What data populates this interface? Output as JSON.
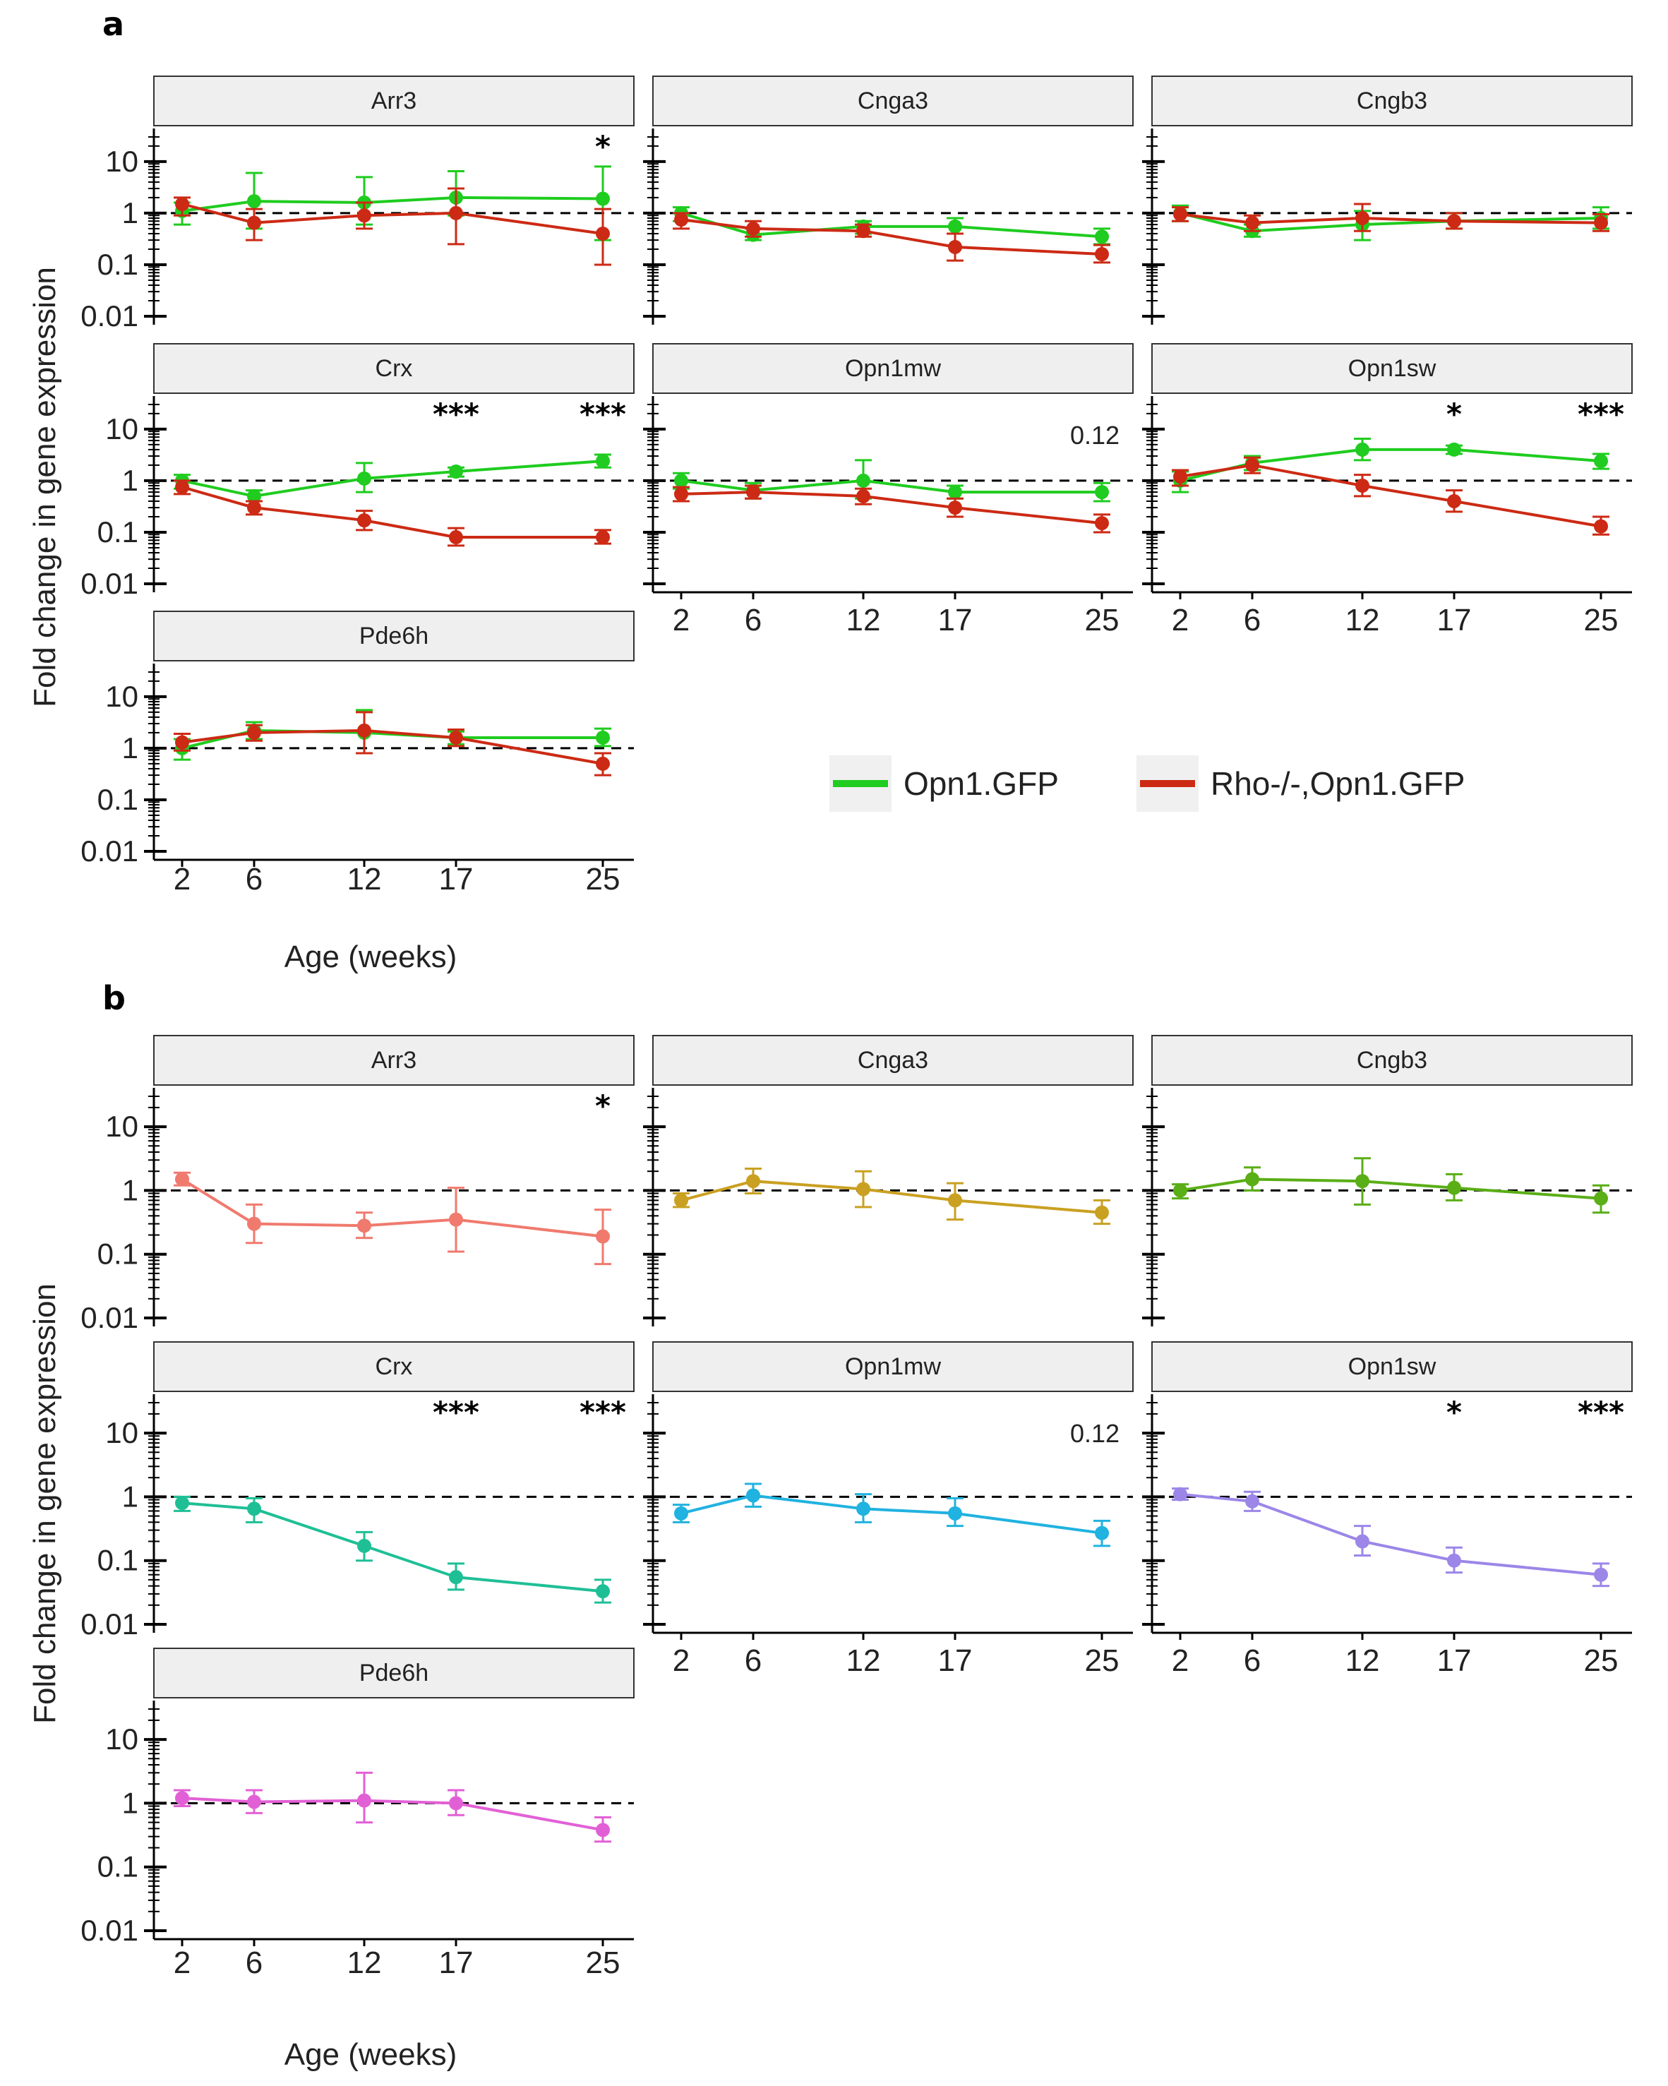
{
  "y_axis_label": "Fold change in gene expression",
  "x_axis_label": "Age (weeks)",
  "colors": {
    "strip_fill": "#efefef",
    "opn1gfp": "#1fcc1f",
    "rho": "#cc2a14"
  },
  "legend": [
    {
      "label": "Opn1.GFP",
      "color": "#1fcc1f"
    },
    {
      "label": "Rho-/-,Opn1.GFP",
      "color": "#cc2a14"
    }
  ],
  "chart_data": [
    {
      "panel": "a",
      "type": "line",
      "x_ticks": [
        2,
        6,
        12,
        17,
        25
      ],
      "y_ticks": [
        "10",
        "1",
        "0.1",
        "0.01"
      ],
      "y_scale": "log10",
      "ylim": [
        0.01,
        30
      ],
      "reference_line": 1,
      "facets": [
        {
          "gene": "Arr3",
          "annotations": [
            {
              "x": 25,
              "text": "*"
            }
          ],
          "series": [
            {
              "name": "Opn1.GFP",
              "color": "#1fcc1f",
              "x": [
                2,
                6,
                12,
                17,
                25
              ],
              "y": [
                1.1,
                1.7,
                1.6,
                2.0,
                1.9
              ],
              "lo": [
                0.6,
                0.5,
                0.6,
                0.9,
                0.3
              ],
              "hi": [
                1.6,
                6.0,
                5.0,
                6.5,
                8.0
              ]
            },
            {
              "name": "Rho-/-,Opn1.GFP",
              "color": "#cc2a14",
              "x": [
                2,
                6,
                12,
                17,
                25
              ],
              "y": [
                1.5,
                0.65,
                0.9,
                1.0,
                0.4
              ],
              "lo": [
                0.9,
                0.3,
                0.5,
                0.25,
                0.1
              ],
              "hi": [
                2.0,
                1.2,
                1.6,
                3.0,
                1.2
              ]
            }
          ]
        },
        {
          "gene": "Cnga3",
          "annotations": [],
          "series": [
            {
              "name": "Opn1.GFP",
              "color": "#1fcc1f",
              "x": [
                2,
                6,
                12,
                17,
                25
              ],
              "y": [
                1.0,
                0.38,
                0.55,
                0.55,
                0.35
              ],
              "lo": [
                0.7,
                0.3,
                0.4,
                0.4,
                0.25
              ],
              "hi": [
                1.3,
                0.5,
                0.7,
                0.8,
                0.5
              ]
            },
            {
              "name": "Rho-/-,Opn1.GFP",
              "color": "#cc2a14",
              "x": [
                2,
                6,
                12,
                17,
                25
              ],
              "y": [
                0.75,
                0.5,
                0.45,
                0.22,
                0.16
              ],
              "lo": [
                0.5,
                0.35,
                0.35,
                0.12,
                0.11
              ],
              "hi": [
                1.0,
                0.7,
                0.6,
                0.4,
                0.24
              ]
            }
          ]
        },
        {
          "gene": "Cngb3",
          "annotations": [],
          "series": [
            {
              "name": "Opn1.GFP",
              "color": "#1fcc1f",
              "x": [
                2,
                6,
                12,
                17,
                25
              ],
              "y": [
                1.0,
                0.45,
                0.6,
                0.7,
                0.8
              ],
              "lo": [
                0.7,
                0.35,
                0.3,
                0.5,
                0.5
              ],
              "hi": [
                1.4,
                0.6,
                1.1,
                1.0,
                1.3
              ]
            },
            {
              "name": "Rho-/-,Opn1.GFP",
              "color": "#cc2a14",
              "x": [
                2,
                6,
                12,
                17,
                25
              ],
              "y": [
                0.95,
                0.65,
                0.8,
                0.7,
                0.65
              ],
              "lo": [
                0.7,
                0.45,
                0.45,
                0.5,
                0.45
              ],
              "hi": [
                1.3,
                0.9,
                1.5,
                1.0,
                0.95
              ]
            }
          ]
        },
        {
          "gene": "Crx",
          "annotations": [
            {
              "x": 17,
              "text": "***"
            },
            {
              "x": 25,
              "text": "***"
            }
          ],
          "series": [
            {
              "name": "Opn1.GFP",
              "color": "#1fcc1f",
              "x": [
                2,
                6,
                12,
                17,
                25
              ],
              "y": [
                1.0,
                0.5,
                1.1,
                1.5,
                2.4
              ],
              "lo": [
                0.7,
                0.4,
                0.6,
                1.2,
                1.8
              ],
              "hi": [
                1.3,
                0.65,
                2.2,
                1.8,
                3.2
              ]
            },
            {
              "name": "Rho-/-,Opn1.GFP",
              "color": "#cc2a14",
              "x": [
                2,
                6,
                12,
                17,
                25
              ],
              "y": [
                0.75,
                0.3,
                0.17,
                0.08,
                0.08
              ],
              "lo": [
                0.55,
                0.22,
                0.11,
                0.055,
                0.06
              ],
              "hi": [
                1.0,
                0.4,
                0.26,
                0.12,
                0.11
              ]
            }
          ]
        },
        {
          "gene": "Opn1mw",
          "annotations": [
            {
              "x": 25,
              "text": "0.12"
            }
          ],
          "series": [
            {
              "name": "Opn1.GFP",
              "color": "#1fcc1f",
              "x": [
                2,
                6,
                12,
                17,
                25
              ],
              "y": [
                1.0,
                0.65,
                1.0,
                0.6,
                0.6
              ],
              "lo": [
                0.7,
                0.45,
                0.45,
                0.45,
                0.4
              ],
              "hi": [
                1.4,
                0.9,
                2.5,
                0.8,
                0.9
              ]
            },
            {
              "name": "Rho-/-,Opn1.GFP",
              "color": "#cc2a14",
              "x": [
                2,
                6,
                12,
                17,
                25
              ],
              "y": [
                0.55,
                0.6,
                0.5,
                0.3,
                0.15
              ],
              "lo": [
                0.4,
                0.45,
                0.35,
                0.2,
                0.1
              ],
              "hi": [
                0.75,
                0.8,
                0.7,
                0.45,
                0.22
              ]
            }
          ]
        },
        {
          "gene": "Opn1sw",
          "annotations": [
            {
              "x": 17,
              "text": "*"
            },
            {
              "x": 25,
              "text": "***"
            }
          ],
          "series": [
            {
              "name": "Opn1.GFP",
              "color": "#1fcc1f",
              "x": [
                2,
                6,
                12,
                17,
                25
              ],
              "y": [
                1.0,
                2.2,
                4.0,
                4.0,
                2.4
              ],
              "lo": [
                0.6,
                1.6,
                2.5,
                3.3,
                1.7
              ],
              "hi": [
                1.5,
                3.0,
                6.5,
                4.8,
                3.3
              ]
            },
            {
              "name": "Rho-/-,Opn1.GFP",
              "color": "#cc2a14",
              "x": [
                2,
                6,
                12,
                17,
                25
              ],
              "y": [
                1.2,
                2.0,
                0.8,
                0.4,
                0.13
              ],
              "lo": [
                0.8,
                1.4,
                0.5,
                0.25,
                0.09
              ],
              "hi": [
                1.6,
                2.8,
                1.3,
                0.65,
                0.2
              ]
            }
          ]
        },
        {
          "gene": "Pde6h",
          "annotations": [],
          "series": [
            {
              "name": "Opn1.GFP",
              "color": "#1fcc1f",
              "x": [
                2,
                6,
                12,
                17,
                25
              ],
              "y": [
                1.0,
                2.2,
                2.0,
                1.6,
                1.6
              ],
              "lo": [
                0.6,
                1.5,
                0.8,
                1.2,
                1.1
              ],
              "hi": [
                1.5,
                3.2,
                5.5,
                2.1,
                2.4
              ]
            },
            {
              "name": "Rho-/-,Opn1.GFP",
              "color": "#cc2a14",
              "x": [
                2,
                6,
                12,
                17,
                25
              ],
              "y": [
                1.3,
                2.0,
                2.2,
                1.6,
                0.5
              ],
              "lo": [
                0.9,
                1.4,
                0.8,
                1.1,
                0.3
              ],
              "hi": [
                1.9,
                2.8,
                5.0,
                2.3,
                0.8
              ]
            }
          ]
        }
      ]
    },
    {
      "panel": "b",
      "type": "line",
      "x_ticks": [
        2,
        6,
        12,
        17,
        25
      ],
      "y_ticks": [
        "10",
        "1",
        "0.1",
        "0.01"
      ],
      "y_scale": "log10",
      "ylim": [
        0.01,
        30
      ],
      "reference_line": 1,
      "facets": [
        {
          "gene": "Arr3",
          "annotations": [
            {
              "x": 25,
              "text": "*"
            }
          ],
          "series": [
            {
              "name": "Arr3",
              "color": "#f07a6e",
              "x": [
                2,
                6,
                12,
                17,
                25
              ],
              "y": [
                1.5,
                0.3,
                0.28,
                0.35,
                0.19
              ],
              "lo": [
                1.2,
                0.15,
                0.18,
                0.11,
                0.07
              ],
              "hi": [
                1.9,
                0.6,
                0.45,
                1.1,
                0.5
              ]
            }
          ]
        },
        {
          "gene": "Cnga3",
          "annotations": [],
          "series": [
            {
              "name": "Cnga3",
              "color": "#c9a021",
              "x": [
                2,
                6,
                12,
                17,
                25
              ],
              "y": [
                0.7,
                1.4,
                1.05,
                0.7,
                0.45
              ],
              "lo": [
                0.55,
                0.9,
                0.55,
                0.35,
                0.3
              ],
              "hi": [
                0.9,
                2.2,
                2.0,
                1.3,
                0.7
              ]
            }
          ]
        },
        {
          "gene": "Cngb3",
          "annotations": [],
          "series": [
            {
              "name": "Cngb3",
              "color": "#5aae16",
              "x": [
                2,
                6,
                12,
                17,
                25
              ],
              "y": [
                1.0,
                1.5,
                1.4,
                1.1,
                0.75
              ],
              "lo": [
                0.75,
                1.0,
                0.6,
                0.7,
                0.45
              ],
              "hi": [
                1.25,
                2.3,
                3.2,
                1.8,
                1.2
              ]
            }
          ]
        },
        {
          "gene": "Crx",
          "annotations": [
            {
              "x": 17,
              "text": "***"
            },
            {
              "x": 25,
              "text": "***"
            }
          ],
          "series": [
            {
              "name": "Crx",
              "color": "#1fbf96",
              "x": [
                2,
                6,
                12,
                17,
                25
              ],
              "y": [
                0.8,
                0.65,
                0.17,
                0.055,
                0.033
              ],
              "lo": [
                0.6,
                0.4,
                0.1,
                0.035,
                0.022
              ],
              "hi": [
                1.0,
                0.95,
                0.28,
                0.09,
                0.05
              ]
            }
          ]
        },
        {
          "gene": "Opn1mw",
          "annotations": [
            {
              "x": 25,
              "text": "0.12"
            }
          ],
          "series": [
            {
              "name": "Opn1mw",
              "color": "#20b2e0",
              "x": [
                2,
                6,
                12,
                17,
                25
              ],
              "y": [
                0.55,
                1.05,
                0.65,
                0.55,
                0.27
              ],
              "lo": [
                0.4,
                0.7,
                0.4,
                0.35,
                0.17
              ],
              "hi": [
                0.75,
                1.6,
                1.1,
                0.95,
                0.42
              ]
            }
          ]
        },
        {
          "gene": "Opn1sw",
          "annotations": [
            {
              "x": 17,
              "text": "*"
            },
            {
              "x": 25,
              "text": "***"
            }
          ],
          "series": [
            {
              "name": "Opn1sw",
              "color": "#9c86e8",
              "x": [
                2,
                6,
                12,
                17,
                25
              ],
              "y": [
                1.1,
                0.85,
                0.2,
                0.1,
                0.06
              ],
              "lo": [
                0.9,
                0.6,
                0.12,
                0.065,
                0.04
              ],
              "hi": [
                1.35,
                1.2,
                0.35,
                0.16,
                0.09
              ]
            }
          ]
        },
        {
          "gene": "Pde6h",
          "annotations": [],
          "series": [
            {
              "name": "Pde6h",
              "color": "#e260d6",
              "x": [
                2,
                6,
                12,
                17,
                25
              ],
              "y": [
                1.2,
                1.05,
                1.1,
                1.0,
                0.38
              ],
              "lo": [
                0.9,
                0.7,
                0.5,
                0.65,
                0.25
              ],
              "hi": [
                1.6,
                1.6,
                3.0,
                1.6,
                0.6
              ]
            }
          ]
        }
      ]
    }
  ]
}
